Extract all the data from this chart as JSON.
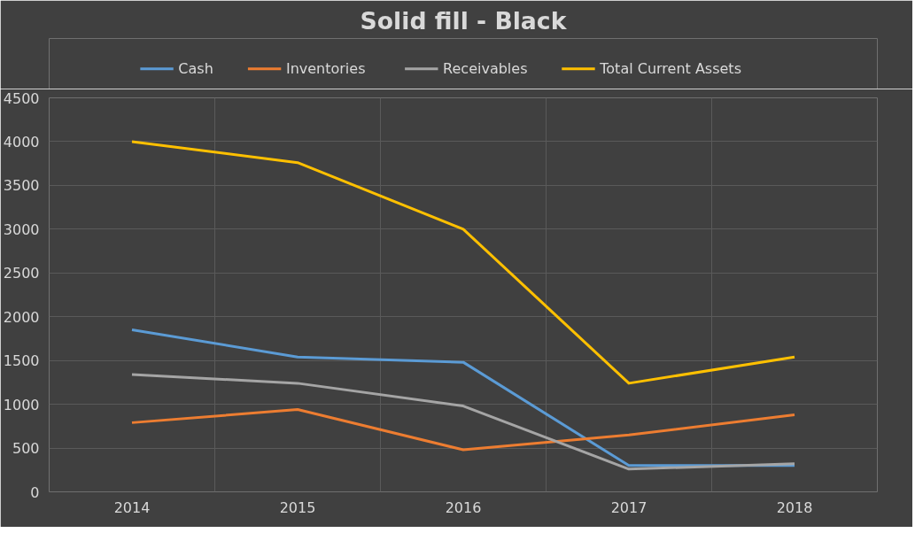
{
  "chart_data": {
    "type": "line",
    "title": "Solid fill - Black",
    "categories": [
      "2014",
      "2015",
      "2016",
      "2017",
      "2018"
    ],
    "series": [
      {
        "name": "Cash",
        "color": "#5b9bd5",
        "values": [
          1850,
          1540,
          1480,
          300,
          300
        ]
      },
      {
        "name": "Inventories",
        "color": "#ed7d31",
        "values": [
          790,
          940,
          480,
          650,
          880
        ]
      },
      {
        "name": "Receivables",
        "color": "#a5a5a5",
        "values": [
          1340,
          1240,
          980,
          260,
          320
        ]
      },
      {
        "name": "Total Current Assets",
        "color": "#ffc000",
        "values": [
          4000,
          3760,
          3000,
          1240,
          1540
        ]
      }
    ],
    "ylim": [
      0,
      4500
    ],
    "yticks": [
      0,
      500,
      1000,
      1500,
      2000,
      2500,
      3000,
      3500,
      4000,
      4500
    ],
    "grid": true,
    "legend": "top",
    "marker": "none",
    "line_style": "solid"
  }
}
